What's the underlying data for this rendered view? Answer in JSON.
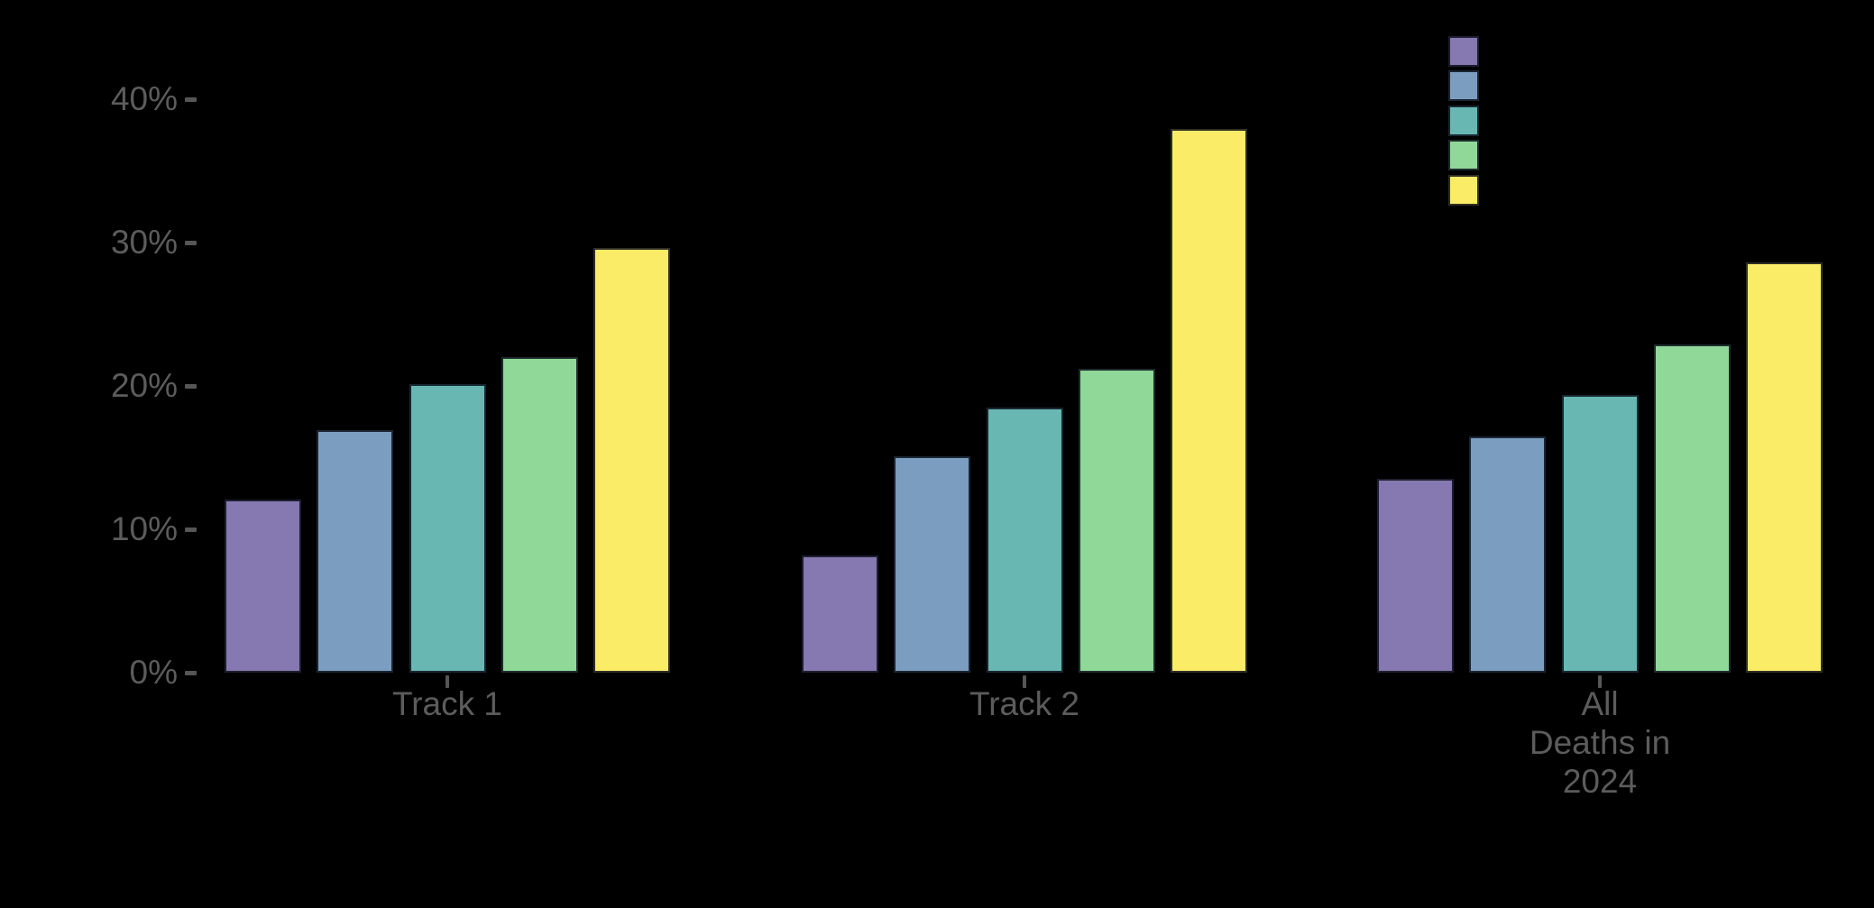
{
  "chart_data": {
    "type": "bar",
    "title": "",
    "xlabel": "",
    "ylabel": "",
    "categories": [
      "Track 1",
      "Track 2",
      "All Deaths in 2024"
    ],
    "category_label_lines": [
      [
        "Track 1"
      ],
      [
        "Track 2"
      ],
      [
        "All",
        "Deaths in",
        "2024"
      ]
    ],
    "series": [
      {
        "color": "#8678B0",
        "values": [
          12.1,
          8.2,
          13.5
        ]
      },
      {
        "color": "#7B9EC0",
        "values": [
          16.9,
          15.1,
          16.5
        ]
      },
      {
        "color": "#68B7B2",
        "values": [
          20.1,
          18.5,
          19.4
        ]
      },
      {
        "color": "#8FD898",
        "values": [
          22.0,
          21.2,
          22.9
        ]
      },
      {
        "color": "#FBEC67",
        "values": [
          29.6,
          37.9,
          28.6
        ]
      }
    ],
    "y_axis": {
      "tick_labels": [
        "0%",
        "10%",
        "20%",
        "30%",
        "40%"
      ],
      "tick_values": [
        0,
        10,
        20,
        30,
        40
      ],
      "range": [
        0,
        41.5
      ]
    },
    "legend": {
      "position": "top-right",
      "swatch_colors": [
        "#8678B0",
        "#7B9EC0",
        "#68B7B2",
        "#8FD898",
        "#FBEC67"
      ],
      "labels_visible": false
    },
    "grid": false,
    "background_color": "#000000",
    "tick_text_color": "#5c5c5c"
  }
}
